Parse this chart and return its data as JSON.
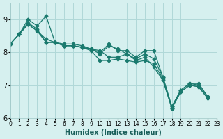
{
  "xlabel": "Humidex (Indice chaleur)",
  "background_color": "#d6f0ef",
  "grid_color": "#b0d8d8",
  "line_color": "#1a7a6e",
  "xlim": [
    0,
    23
  ],
  "ylim": [
    6,
    9.5
  ],
  "yticks": [
    6,
    7,
    8,
    9
  ],
  "xticks": [
    0,
    1,
    2,
    3,
    4,
    5,
    6,
    7,
    8,
    9,
    10,
    11,
    12,
    13,
    14,
    15,
    16,
    17,
    18,
    19,
    20,
    21,
    22,
    23
  ],
  "series": [
    [
      8.25,
      8.55,
      9.0,
      8.8,
      9.1,
      8.3,
      8.25,
      8.25,
      8.2,
      8.1,
      8.0,
      8.25,
      8.05,
      8.05,
      7.85,
      8.05,
      8.05,
      7.25,
      6.35,
      6.85,
      7.05,
      7.05,
      6.65,
      null
    ],
    [
      8.25,
      8.55,
      8.9,
      8.7,
      8.3,
      8.3,
      8.2,
      8.2,
      8.15,
      8.1,
      7.95,
      8.2,
      8.1,
      7.95,
      7.8,
      7.95,
      7.8,
      7.25,
      6.35,
      6.85,
      7.05,
      7.0,
      6.65,
      null
    ],
    [
      8.25,
      8.55,
      8.85,
      8.65,
      8.3,
      8.3,
      8.2,
      8.2,
      8.15,
      8.05,
      7.75,
      7.75,
      7.8,
      7.75,
      7.7,
      7.75,
      7.65,
      7.2,
      6.3,
      6.8,
      7.0,
      6.95,
      6.6,
      null
    ],
    [
      8.25,
      8.55,
      8.85,
      8.65,
      8.4,
      8.3,
      8.2,
      8.2,
      8.15,
      8.1,
      8.05,
      7.85,
      7.85,
      7.95,
      7.75,
      7.85,
      7.55,
      7.15,
      6.3,
      6.8,
      7.0,
      6.95,
      6.6,
      null
    ]
  ]
}
